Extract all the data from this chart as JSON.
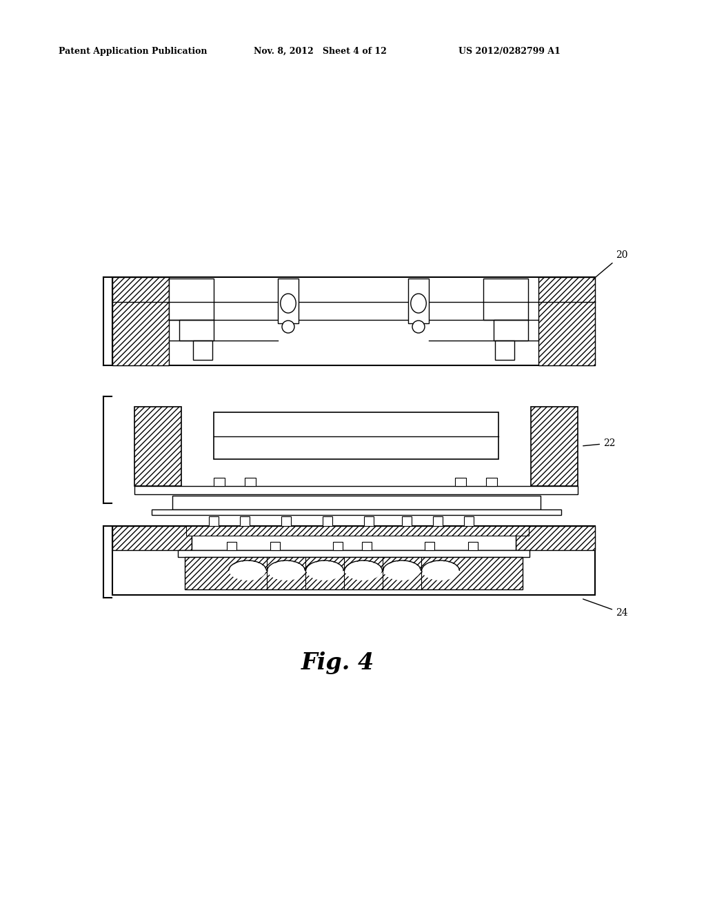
{
  "background_color": "#ffffff",
  "header_left": "Patent Application Publication",
  "header_center": "Nov. 8, 2012   Sheet 4 of 12",
  "header_right": "US 2012/0282799 A1",
  "caption": "Fig. 4",
  "label_20": "20",
  "label_22": "22",
  "label_24": "24",
  "fig_width": 10.24,
  "fig_height": 13.2
}
